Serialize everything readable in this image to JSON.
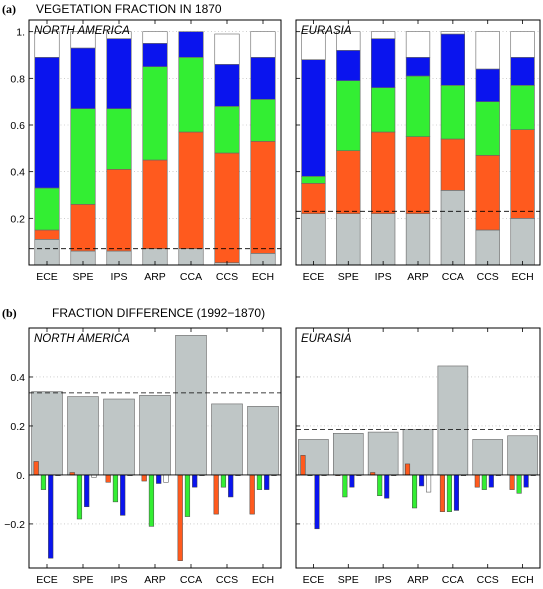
{
  "top": {
    "panel_label": "(a)",
    "title": "VEGETATION FRACTION IN 1870"
  },
  "bottom": {
    "panel_label": "(b)",
    "title": "FRACTION DIFFERENCE (1992−1870)"
  },
  "colors": {
    "grey": "#bfc6c6",
    "red": "#ff5a1e",
    "green": "#33ee33",
    "blue": "#0a14ee",
    "white": "#ffffff"
  },
  "chart_data": [
    {
      "type": "bar",
      "stacked": true,
      "region": "NORTH AMERICA",
      "categories": [
        "ECE",
        "SPE",
        "IPS",
        "ARP",
        "CCA",
        "CCS",
        "ECH"
      ],
      "ylim": [
        0,
        1.05
      ],
      "yticks": [
        0.2,
        0.4,
        0.6,
        0.8,
        1
      ],
      "ytick_labels": [
        "0.2",
        "0.4",
        "0.6",
        "0.8",
        "1."
      ],
      "reference_line": 0.07,
      "series": [
        {
          "color": "grey",
          "values": [
            0.11,
            0.06,
            0.06,
            0.07,
            0.07,
            0.01,
            0.05
          ]
        },
        {
          "color": "red",
          "values": [
            0.04,
            0.2,
            0.35,
            0.38,
            0.5,
            0.47,
            0.48
          ]
        },
        {
          "color": "green",
          "values": [
            0.18,
            0.41,
            0.26,
            0.4,
            0.32,
            0.2,
            0.18
          ]
        },
        {
          "color": "blue",
          "values": [
            0.56,
            0.26,
            0.3,
            0.1,
            0.11,
            0.18,
            0.18
          ]
        },
        {
          "color": "white",
          "values": [
            0.11,
            0.07,
            0.03,
            0.05,
            0.0,
            0.13,
            0.11
          ]
        }
      ]
    },
    {
      "type": "bar",
      "stacked": true,
      "region": "EURASIA",
      "categories": [
        "ECE",
        "SPE",
        "IPS",
        "ARP",
        "CCA",
        "CCS",
        "ECH"
      ],
      "ylim": [
        0,
        1.05
      ],
      "reference_line": 0.23,
      "series": [
        {
          "color": "grey",
          "values": [
            0.22,
            0.22,
            0.22,
            0.22,
            0.32,
            0.15,
            0.2
          ]
        },
        {
          "color": "red",
          "values": [
            0.13,
            0.27,
            0.35,
            0.33,
            0.22,
            0.32,
            0.38
          ]
        },
        {
          "color": "green",
          "values": [
            0.03,
            0.3,
            0.19,
            0.26,
            0.23,
            0.23,
            0.19
          ]
        },
        {
          "color": "blue",
          "values": [
            0.5,
            0.13,
            0.21,
            0.08,
            0.22,
            0.14,
            0.12
          ]
        },
        {
          "color": "white",
          "values": [
            0.12,
            0.08,
            0.03,
            0.11,
            0.01,
            0.16,
            0.11
          ]
        }
      ]
    },
    {
      "type": "bar",
      "region": "NORTH AMERICA",
      "categories": [
        "ECE",
        "SPE",
        "IPS",
        "ARP",
        "CCA",
        "CCS",
        "ECH"
      ],
      "ylim": [
        -0.38,
        0.6
      ],
      "yticks": [
        -0.2,
        0,
        0.2,
        0.4
      ],
      "ytick_labels": [
        "−0.2",
        "0.",
        "0.2",
        "0.4"
      ],
      "reference_line": 0.335,
      "total": [
        0.34,
        0.32,
        0.31,
        0.325,
        0.57,
        0.29,
        0.28
      ],
      "series": [
        {
          "color": "red",
          "values": [
            0.055,
            0.01,
            -0.03,
            -0.025,
            -0.35,
            -0.16,
            -0.16
          ]
        },
        {
          "color": "green",
          "values": [
            -0.06,
            -0.18,
            -0.11,
            -0.21,
            -0.17,
            -0.05,
            -0.06
          ]
        },
        {
          "color": "blue",
          "values": [
            -0.34,
            -0.13,
            -0.165,
            -0.035,
            -0.05,
            -0.09,
            -0.06
          ]
        },
        {
          "color": "white",
          "values": [
            0.0,
            -0.01,
            0.0,
            -0.03,
            0.0,
            0.0,
            0.0
          ]
        }
      ]
    },
    {
      "type": "bar",
      "region": "EURASIA",
      "categories": [
        "ECE",
        "SPE",
        "IPS",
        "ARP",
        "CCA",
        "CCS",
        "ECH"
      ],
      "ylim": [
        -0.38,
        0.6
      ],
      "reference_line": 0.185,
      "total": [
        0.145,
        0.17,
        0.175,
        0.185,
        0.445,
        0.145,
        0.16
      ],
      "series": [
        {
          "color": "red",
          "values": [
            0.08,
            0.0,
            0.01,
            0.045,
            -0.15,
            -0.05,
            -0.06
          ]
        },
        {
          "color": "green",
          "values": [
            0.0,
            -0.09,
            -0.085,
            -0.135,
            -0.15,
            -0.06,
            -0.075
          ]
        },
        {
          "color": "blue",
          "values": [
            -0.22,
            -0.05,
            -0.095,
            -0.045,
            -0.145,
            -0.05,
            -0.05
          ]
        },
        {
          "color": "white",
          "values": [
            0.0,
            0.0,
            0.0,
            -0.07,
            0.0,
            0.0,
            0.0
          ]
        }
      ]
    }
  ]
}
